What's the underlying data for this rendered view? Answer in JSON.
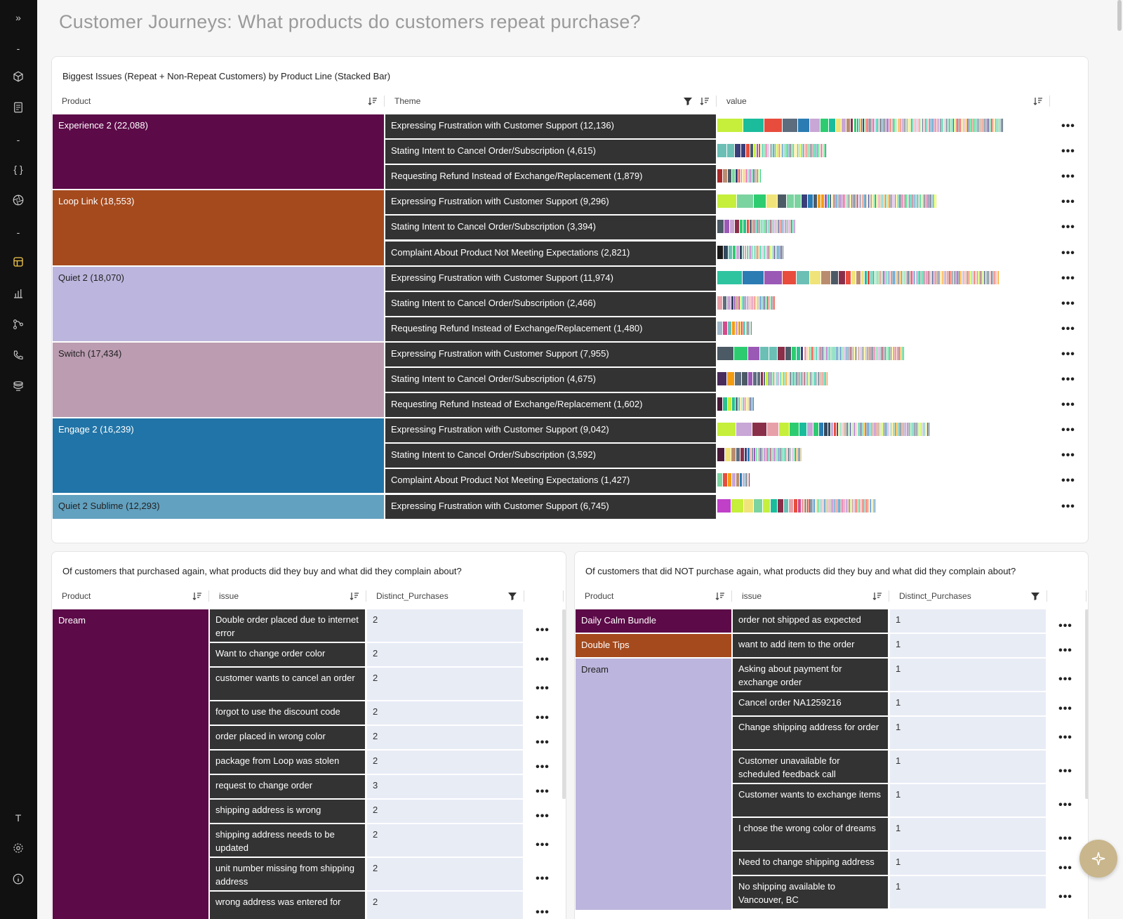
{
  "sidebar": {
    "icons": [
      "expand-icon",
      "divider-icon",
      "cube-icon",
      "document-icon",
      "divider-icon",
      "braces-icon",
      "aperture-icon",
      "divider-icon",
      "dashboard-icon",
      "bar-chart-icon",
      "flow-icon",
      "phone-icon",
      "stack-icon",
      "text-icon",
      "gear-icon",
      "info-icon"
    ],
    "t_label": "T",
    "expand_label": "»",
    "braces_label": "{ }",
    "dash_label": "-"
  },
  "page": {
    "title": "Customer Journeys: What products do customers repeat purchase?"
  },
  "top_chart": {
    "title": "Biggest Issues (Repeat + Non-Repeat Customers) by Product Line (Stacked Bar)",
    "columns": [
      "Product",
      "Theme",
      "value"
    ],
    "products": [
      {
        "label": "Experience 2 (22,088)",
        "color": "#5c0a48",
        "text_color": "#ffffff",
        "rows": 3
      },
      {
        "label": "Loop Link (18,553)",
        "color": "#a54a1d",
        "text_color": "#ffffff",
        "rows": 3
      },
      {
        "label": "Quiet 2 (18,070)",
        "color": "#bcb6de",
        "text_color": "#222222",
        "rows": 3
      },
      {
        "label": "Switch (17,434)",
        "color": "#bb9cb1",
        "text_color": "#222222",
        "rows": 3
      },
      {
        "label": "Engage 2 (16,239)",
        "color": "#2174a7",
        "text_color": "#ffffff",
        "rows": 3
      },
      {
        "label": "Quiet 2 Sublime (12,293)",
        "color": "#62a1c0",
        "text_color": "#222222",
        "rows": 1
      }
    ],
    "themes": [
      "Expressing Frustration with Customer Support (12,136)",
      "Stating Intent to Cancel Order/Subscription (4,615)",
      "Requesting Refund Instead of Exchange/Replacement (1,879)",
      "Expressing Frustration with Customer Support (9,296)",
      "Stating Intent to Cancel Order/Subscription (3,394)",
      "Complaint About Product Not Meeting Expectations (2,821)",
      "Expressing Frustration with Customer Support (11,974)",
      "Stating Intent to Cancel Order/Subscription (2,466)",
      "Requesting Refund Instead of Exchange/Replacement (1,480)",
      "Expressing Frustration with Customer Support (7,955)",
      "Stating Intent to Cancel Order/Subscription (4,675)",
      "Requesting Refund Instead of Exchange/Replacement (1,602)",
      "Expressing Frustration with Customer Support (9,042)",
      "Stating Intent to Cancel Order/Subscription (3,592)",
      "Complaint About Product Not Meeting Expectations (1,427)",
      "Expressing Frustration with Customer Support (6,745)"
    ],
    "values": [
      12136,
      4615,
      1879,
      9296,
      3394,
      2821,
      11974,
      2466,
      1480,
      7955,
      4675,
      1602,
      9042,
      3592,
      1427,
      6745
    ],
    "palette": [
      "#c5ef3b",
      "#6bbfb5",
      "#4c5a66",
      "#2b7cb3",
      "#27c28e",
      "#e8a0a8",
      "#b98c6f",
      "#5d6d7e",
      "#c8a6d6",
      "#3a3f7a",
      "#7bd3a0",
      "#d44a8a",
      "#f0e37a",
      "#8a2f4a",
      "#9b59b6",
      "#2ecc71",
      "#e74c3c",
      "#1abc9c",
      "#34495e",
      "#f39c12"
    ],
    "first_colors": [
      "#c5ef3b",
      "#6bbfb5",
      "#a82a2a",
      "#c5ef3b",
      "#4c5a66",
      "#1a1a1a",
      "#2ec4a0",
      "#e8a0a8",
      "#9fb7c9",
      "#4c5a66",
      "#4a2c5c",
      "#4a1a3a",
      "#c5ef3b",
      "#4a1a3a",
      "#7bd3a0",
      "#c040c8"
    ]
  },
  "repeat_table": {
    "title": "Of customers that purchased again, what products did they buy and what did they complain about?",
    "columns": [
      "Product",
      "issue",
      "Distinct_Purchases"
    ],
    "product": {
      "label": "Dream",
      "color": "#5c0a48"
    },
    "rows": [
      {
        "issue": "Double order placed due to internet error",
        "value": "2",
        "tall": true
      },
      {
        "issue": "Want to change order color",
        "value": "2",
        "tall": false
      },
      {
        "issue": "customer wants to cancel an order",
        "value": "2",
        "tall": true
      },
      {
        "issue": "forgot to use the discount code",
        "value": "2",
        "tall": false
      },
      {
        "issue": "order placed in wrong color",
        "value": "2",
        "tall": false
      },
      {
        "issue": "package from Loop was stolen",
        "value": "2",
        "tall": false
      },
      {
        "issue": "request to change order",
        "value": "3",
        "tall": false
      },
      {
        "issue": "shipping address is wrong",
        "value": "2",
        "tall": false
      },
      {
        "issue": "shipping address needs to be updated",
        "value": "2",
        "tall": true
      },
      {
        "issue": "unit number missing from shipping address",
        "value": "2",
        "tall": true
      },
      {
        "issue": "wrong address was entered for",
        "value": "2",
        "tall": true
      }
    ]
  },
  "nonrepeat_table": {
    "title": "Of customers that did NOT purchase again, what products did they buy and what did they complain about?",
    "columns": [
      "Product",
      "issue",
      "Distinct_Purchases"
    ],
    "products": [
      {
        "label": "Daily Calm Bundle",
        "color": "#5c0a48",
        "text_color": "#ffffff"
      },
      {
        "label": "Double Tips",
        "color": "#a54a1d",
        "text_color": "#ffffff"
      },
      {
        "label": "Dream",
        "color": "#bcb6de",
        "text_color": "#222222"
      }
    ],
    "rows": [
      {
        "issue": "order not shipped as expected",
        "value": "1",
        "tall": false
      },
      {
        "issue": "want to add item to the order",
        "value": "1",
        "tall": false
      },
      {
        "issue": "Asking about payment for exchange order",
        "value": "1",
        "tall": true
      },
      {
        "issue": "Cancel order NA1259216",
        "value": "1",
        "tall": false
      },
      {
        "issue": "Change shipping address for order",
        "value": "1",
        "tall": true
      },
      {
        "issue": "Customer unavailable for scheduled feedback call",
        "value": "1",
        "tall": true
      },
      {
        "issue": "Customer wants to exchange items",
        "value": "1",
        "tall": true
      },
      {
        "issue": "I chose the wrong color of dreams",
        "value": "1",
        "tall": true
      },
      {
        "issue": "Need to change shipping address",
        "value": "1",
        "tall": false
      },
      {
        "issue": "No shipping available to Vancouver, BC",
        "value": "1",
        "tall": true
      }
    ]
  },
  "more_label": "•••"
}
